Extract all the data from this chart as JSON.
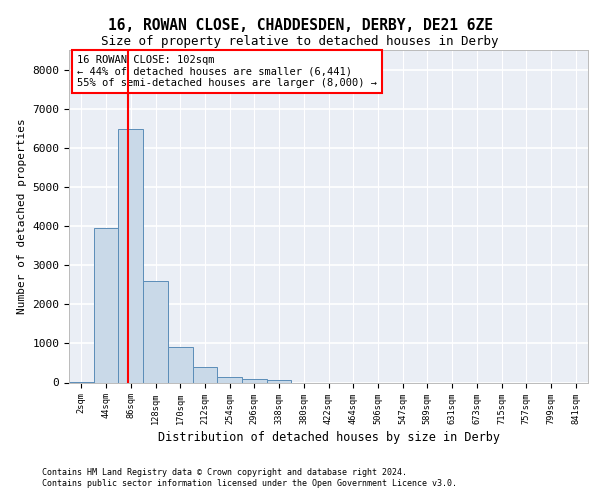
{
  "title1": "16, ROWAN CLOSE, CHADDESDEN, DERBY, DE21 6ZE",
  "title2": "Size of property relative to detached houses in Derby",
  "xlabel": "Distribution of detached houses by size in Derby",
  "ylabel": "Number of detached properties",
  "bin_labels": [
    "2sqm",
    "44sqm",
    "86sqm",
    "128sqm",
    "170sqm",
    "212sqm",
    "254sqm",
    "296sqm",
    "338sqm",
    "380sqm",
    "422sqm",
    "464sqm",
    "506sqm",
    "547sqm",
    "589sqm",
    "631sqm",
    "673sqm",
    "715sqm",
    "757sqm",
    "799sqm",
    "841sqm"
  ],
  "bar_values": [
    25,
    3950,
    6480,
    2600,
    900,
    400,
    150,
    100,
    60,
    0,
    0,
    0,
    0,
    0,
    0,
    0,
    0,
    0,
    0,
    0,
    0
  ],
  "bar_color": "#c9d9e8",
  "bar_edge_color": "#5b8db8",
  "annotation_title": "16 ROWAN CLOSE: 102sqm",
  "annotation_line1": "← 44% of detached houses are smaller (6,441)",
  "annotation_line2": "55% of semi-detached houses are larger (8,000) →",
  "ylim": [
    0,
    8500
  ],
  "yticks": [
    0,
    1000,
    2000,
    3000,
    4000,
    5000,
    6000,
    7000,
    8000
  ],
  "footer1": "Contains HM Land Registry data © Crown copyright and database right 2024.",
  "footer2": "Contains public sector information licensed under the Open Government Licence v3.0.",
  "background_color": "#eaeef5",
  "grid_color": "#ffffff"
}
